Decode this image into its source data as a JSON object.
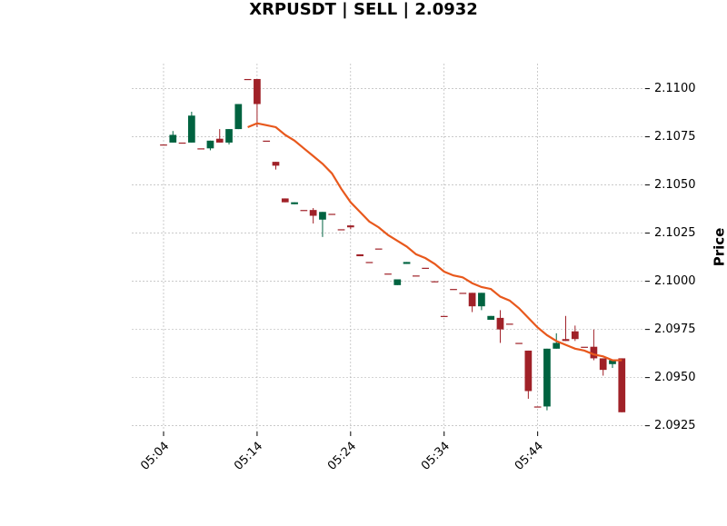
{
  "chart_data": {
    "type": "candlestick",
    "title": "XRPUSDT | SELL | 2.0932",
    "ylabel": "Price",
    "x": [
      4,
      5,
      6,
      7,
      8,
      9,
      10,
      11,
      12,
      13,
      14,
      15,
      16,
      17,
      18,
      19,
      20,
      21,
      22,
      23,
      24,
      25,
      26,
      27,
      28,
      29,
      30,
      31,
      32,
      33,
      34,
      35,
      36,
      37,
      38,
      39,
      40,
      41,
      42,
      43,
      44,
      45,
      46,
      47,
      48,
      49,
      50,
      51,
      52,
      53
    ],
    "open": [
      2.1071,
      2.1072,
      2.1072,
      2.1072,
      2.1069,
      2.1069,
      2.1074,
      2.1072,
      2.1079,
      2.1105,
      2.1105,
      2.1073,
      2.1062,
      2.1043,
      2.104,
      2.1037,
      2.1037,
      2.1032,
      2.1035,
      2.1027,
      2.1029,
      2.1014,
      2.101,
      2.1017,
      2.1004,
      2.0998,
      2.1009,
      2.1003,
      2.1007,
      2.1,
      2.0982,
      2.0996,
      2.0994,
      2.0994,
      2.0987,
      2.098,
      2.0981,
      2.0978,
      2.0968,
      2.0964,
      2.0935,
      2.0935,
      2.0965,
      2.097,
      2.0974,
      2.0966,
      2.0966,
      2.096,
      2.0957,
      2.096
    ],
    "high": [
      2.1071,
      2.1078,
      2.1072,
      2.1088,
      2.1069,
      2.1073,
      2.1079,
      2.1079,
      2.1092,
      2.1105,
      2.1105,
      2.1073,
      2.1062,
      2.1043,
      2.1041,
      2.1037,
      2.1038,
      2.1036,
      2.1035,
      2.1027,
      2.1029,
      2.1014,
      2.101,
      2.1017,
      2.1004,
      2.1001,
      2.101,
      2.1003,
      2.1007,
      2.1,
      2.0982,
      2.0996,
      2.0994,
      2.0994,
      2.0994,
      2.0982,
      2.0985,
      2.0978,
      2.0968,
      2.0964,
      2.0935,
      2.0965,
      2.0973,
      2.0982,
      2.0977,
      2.0966,
      2.0975,
      2.096,
      2.0959,
      2.096
    ],
    "low": [
      2.1071,
      2.1072,
      2.1072,
      2.1072,
      2.1069,
      2.1068,
      2.1072,
      2.1071,
      2.1079,
      2.1105,
      2.108,
      2.1073,
      2.1058,
      2.1041,
      2.104,
      2.1037,
      2.103,
      2.1023,
      2.1035,
      2.1027,
      2.1027,
      2.1013,
      2.101,
      2.1017,
      2.1004,
      2.0998,
      2.1009,
      2.1003,
      2.1007,
      2.1,
      2.0982,
      2.0996,
      2.0994,
      2.0984,
      2.0985,
      2.098,
      2.0968,
      2.0978,
      2.0968,
      2.0939,
      2.0935,
      2.0933,
      2.0965,
      2.0969,
      2.0969,
      2.0966,
      2.0959,
      2.0951,
      2.0955,
      2.0932
    ],
    "close": [
      2.1071,
      2.1076,
      2.1072,
      2.1086,
      2.1069,
      2.1073,
      2.1072,
      2.1079,
      2.1092,
      2.1105,
      2.1092,
      2.1073,
      2.106,
      2.1041,
      2.1041,
      2.1037,
      2.1034,
      2.1036,
      2.1035,
      2.1027,
      2.1028,
      2.1013,
      2.101,
      2.1017,
      2.1004,
      2.1001,
      2.101,
      2.1003,
      2.1007,
      2.1,
      2.0982,
      2.0996,
      2.0994,
      2.0987,
      2.0994,
      2.0982,
      2.0975,
      2.0978,
      2.0968,
      2.0943,
      2.0935,
      2.0965,
      2.0968,
      2.0969,
      2.097,
      2.0966,
      2.096,
      2.0954,
      2.0959,
      2.0932
    ],
    "up_color": "#006340",
    "down_color": "#a02128",
    "moving_average": {
      "color": "#e8581c",
      "values": [
        null,
        null,
        null,
        null,
        null,
        null,
        null,
        null,
        null,
        2.108,
        2.1082,
        2.1081,
        2.108,
        2.1076,
        2.1073,
        2.1069,
        2.1065,
        2.1061,
        2.1056,
        2.1048,
        2.1041,
        2.1036,
        2.1031,
        2.1028,
        2.1024,
        2.1021,
        2.1018,
        2.1014,
        2.1012,
        2.1009,
        2.1005,
        2.1003,
        2.1002,
        2.0999,
        2.0997,
        2.0996,
        2.0992,
        2.099,
        2.0986,
        2.0981,
        2.0976,
        2.0972,
        2.0969,
        2.0967,
        2.0965,
        2.0964,
        2.0962,
        2.0961,
        2.0959,
        2.0959
      ]
    },
    "xlim": [
      0.6,
      55.5
    ],
    "ylim": [
      2.0922,
      2.1113
    ],
    "xticks": [
      {
        "value": 4,
        "label": "05:04"
      },
      {
        "value": 14,
        "label": "05:14"
      },
      {
        "value": 24,
        "label": "05:24"
      },
      {
        "value": 34,
        "label": "05:34"
      },
      {
        "value": 44,
        "label": "05:44"
      }
    ],
    "yticks": [
      {
        "value": 2.0925,
        "label": "2.0925"
      },
      {
        "value": 2.095,
        "label": "2.0950"
      },
      {
        "value": 2.0975,
        "label": "2.0975"
      },
      {
        "value": 2.1,
        "label": "2.1000"
      },
      {
        "value": 2.1025,
        "label": "2.1025"
      },
      {
        "value": 2.105,
        "label": "2.1050"
      },
      {
        "value": 2.1075,
        "label": "2.1075"
      },
      {
        "value": 2.11,
        "label": "2.1100"
      }
    ],
    "grid": true,
    "yaxis_side": "right"
  }
}
